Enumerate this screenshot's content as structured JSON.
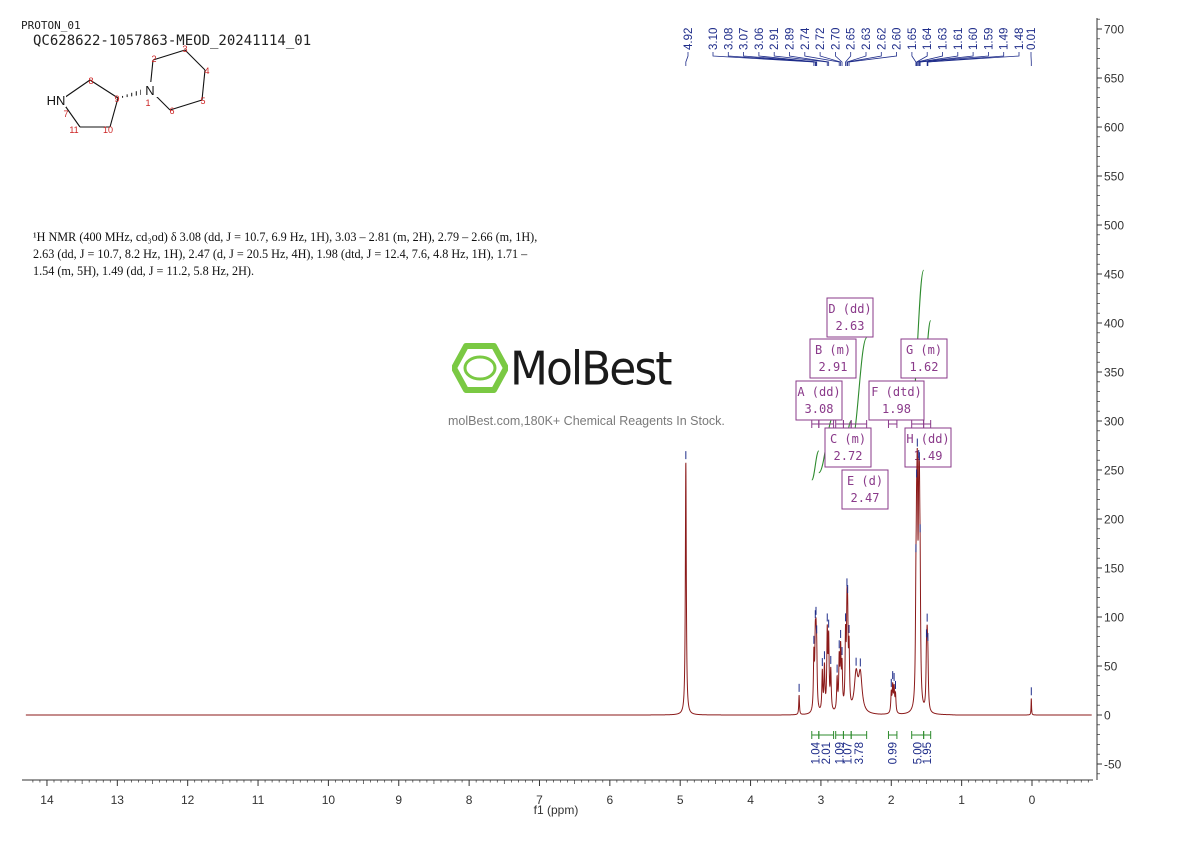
{
  "header": {
    "experiment": "PROTON_01",
    "sample": "QC628622-1057863-MEOD_20241114_01"
  },
  "molecule": {
    "atoms": [
      {
        "label": "HN",
        "number": "7"
      },
      {
        "label": "",
        "number": "8"
      },
      {
        "label": "",
        "number": "9"
      },
      {
        "label": "N",
        "number": "1"
      },
      {
        "label": "",
        "number": "2"
      },
      {
        "label": "",
        "number": "3"
      },
      {
        "label": "",
        "number": "4"
      },
      {
        "label": "",
        "number": "5"
      },
      {
        "label": "",
        "number": "6"
      },
      {
        "label": "",
        "number": "10"
      },
      {
        "label": "",
        "number": "11"
      }
    ]
  },
  "description": {
    "line1": "¹H NMR (400 MHz, cd₃od) δ 3.08 (dd, J = 10.7, 6.9 Hz, 1H), 3.03 – 2.81 (m, 2H), 2.79 – 2.66 (m, 1H),",
    "line2": "2.63 (dd, J = 10.7, 8.2 Hz, 1H), 2.47 (d, J = 20.5 Hz, 4H), 1.98 (dtd, J = 12.4, 7.6, 4.8 Hz, 1H), 1.71 –",
    "line3": "1.54 (m, 5H), 1.49 (dd, J = 11.2, 5.8 Hz, 2H)."
  },
  "watermark": {
    "brand": "MolBest",
    "tagline": "molBest.com,180K+ Chemical Reagents In Stock."
  },
  "colors": {
    "spectrum": "#8b1a1a",
    "peak_labels": "#1f2d8a",
    "integral": "#2e8b2e",
    "multiplet_box": "#8a3a8a",
    "axis": "#333333",
    "logo_green": "#7ac943"
  },
  "chart_data": {
    "type": "line",
    "xlabel": "f1 (ppm)",
    "xlim": [
      14.3,
      -0.85
    ],
    "ylim": [
      -60,
      710
    ],
    "x_ticks": [
      14,
      13,
      12,
      11,
      10,
      9,
      8,
      7,
      6,
      5,
      4,
      3,
      2,
      1,
      0
    ],
    "y_ticks": [
      700,
      650,
      600,
      550,
      500,
      450,
      400,
      350,
      300,
      250,
      200,
      150,
      100,
      50,
      0,
      -50
    ],
    "peak_labels": [
      "4.92",
      "3.10",
      "3.08",
      "3.07",
      "3.06",
      "2.91",
      "2.89",
      "2.74",
      "2.72",
      "2.70",
      "2.65",
      "2.63",
      "2.62",
      "2.60",
      "1.65",
      "1.64",
      "1.63",
      "1.61",
      "1.60",
      "1.59",
      "1.49",
      "1.48",
      "0.01"
    ],
    "peaks": [
      {
        "ppm": 4.92,
        "height": 258,
        "width": 0.008
      },
      {
        "ppm": 3.31,
        "height": 20,
        "width": 0.006
      },
      {
        "ppm": 3.1,
        "height": 55,
        "width": 0.008
      },
      {
        "ppm": 3.08,
        "height": 60,
        "width": 0.008
      },
      {
        "ppm": 3.07,
        "height": 52,
        "width": 0.008
      },
      {
        "ppm": 3.06,
        "height": 48,
        "width": 0.008
      },
      {
        "ppm": 2.98,
        "height": 40,
        "width": 0.008
      },
      {
        "ppm": 2.95,
        "height": 45,
        "width": 0.008
      },
      {
        "ppm": 2.91,
        "height": 78,
        "width": 0.008
      },
      {
        "ppm": 2.89,
        "height": 70,
        "width": 0.008
      },
      {
        "ppm": 2.86,
        "height": 40,
        "width": 0.008
      },
      {
        "ppm": 2.77,
        "height": 32,
        "width": 0.008
      },
      {
        "ppm": 2.74,
        "height": 50,
        "width": 0.008
      },
      {
        "ppm": 2.72,
        "height": 58,
        "width": 0.008
      },
      {
        "ppm": 2.7,
        "height": 42,
        "width": 0.008
      },
      {
        "ppm": 2.65,
        "height": 70,
        "width": 0.008
      },
      {
        "ppm": 2.63,
        "height": 82,
        "width": 0.008
      },
      {
        "ppm": 2.62,
        "height": 72,
        "width": 0.008
      },
      {
        "ppm": 2.6,
        "height": 58,
        "width": 0.008
      },
      {
        "ppm": 2.5,
        "height": 38,
        "width": 0.03
      },
      {
        "ppm": 2.44,
        "height": 38,
        "width": 0.03
      },
      {
        "ppm": 2.0,
        "height": 20,
        "width": 0.008
      },
      {
        "ppm": 1.98,
        "height": 26,
        "width": 0.008
      },
      {
        "ppm": 1.96,
        "height": 24,
        "width": 0.008
      },
      {
        "ppm": 1.94,
        "height": 18,
        "width": 0.008
      },
      {
        "ppm": 1.65,
        "height": 80,
        "width": 0.008
      },
      {
        "ppm": 1.64,
        "height": 120,
        "width": 0.008
      },
      {
        "ppm": 1.63,
        "height": 178,
        "width": 0.008
      },
      {
        "ppm": 1.61,
        "height": 155,
        "width": 0.008
      },
      {
        "ppm": 1.6,
        "height": 140,
        "width": 0.008
      },
      {
        "ppm": 1.59,
        "height": 95,
        "width": 0.008
      },
      {
        "ppm": 1.5,
        "height": 45,
        "width": 0.008
      },
      {
        "ppm": 1.49,
        "height": 55,
        "width": 0.008
      },
      {
        "ppm": 1.48,
        "height": 42,
        "width": 0.008
      },
      {
        "ppm": 0.01,
        "height": 17,
        "width": 0.004
      }
    ],
    "multiplets": [
      {
        "label": "D (dd)",
        "shift": "2.63",
        "ppm": 2.63
      },
      {
        "label": "B (m)",
        "shift": "2.91",
        "ppm": 2.91
      },
      {
        "label": "G (m)",
        "shift": "1.62",
        "ppm": 1.62
      },
      {
        "label": "A (dd)",
        "shift": "3.08",
        "ppm": 3.08
      },
      {
        "label": "F (dtd)",
        "shift": "1.98",
        "ppm": 1.98
      },
      {
        "label": "C (m)",
        "shift": "2.72",
        "ppm": 2.72
      },
      {
        "label": "H (dd)",
        "shift": "1.49",
        "ppm": 1.49
      },
      {
        "label": "E (d)",
        "shift": "2.47",
        "ppm": 2.47
      }
    ],
    "integrals": [
      {
        "value": "1.04",
        "from": 3.13,
        "to": 3.03
      },
      {
        "value": "2.01",
        "from": 3.03,
        "to": 2.82
      },
      {
        "value": "1.09",
        "from": 2.79,
        "to": 2.68
      },
      {
        "value": "1.07",
        "from": 2.68,
        "to": 2.57
      },
      {
        "value": "3.78",
        "from": 2.57,
        "to": 2.35
      },
      {
        "value": "0.99",
        "from": 2.04,
        "to": 1.92
      },
      {
        "value": "5.00",
        "from": 1.71,
        "to": 1.54
      },
      {
        "value": "1.95",
        "from": 1.54,
        "to": 1.44
      }
    ]
  }
}
